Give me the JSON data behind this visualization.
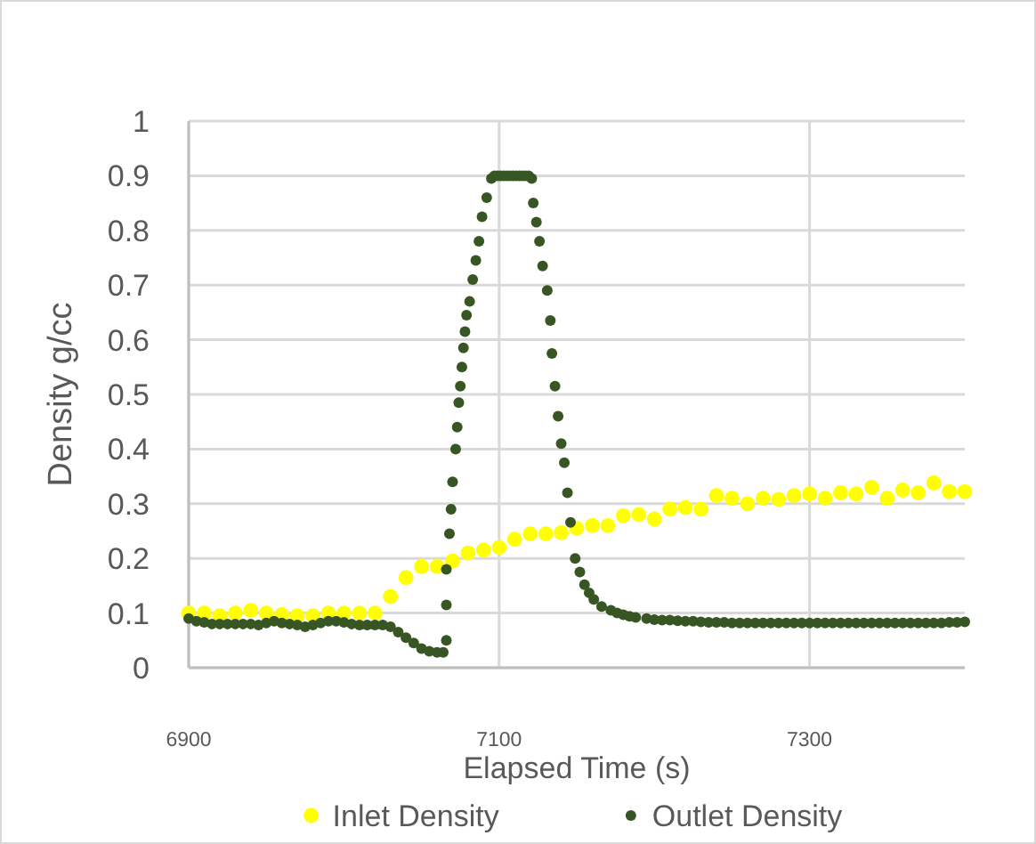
{
  "chart_data": {
    "type": "scatter",
    "xlabel": "Elapsed Time (s)",
    "ylabel": "Density g/cc",
    "xlim": [
      6900,
      7400
    ],
    "xticks": [
      6900,
      7100,
      7300
    ],
    "ylim": [
      0,
      1
    ],
    "yticks": [
      0,
      0.1,
      0.2,
      0.3,
      0.4,
      0.5,
      0.6,
      0.7,
      0.8,
      0.9,
      1
    ],
    "grid": true,
    "legend": "bottom",
    "marker": "circle",
    "series": [
      {
        "name": "Inlet Density",
        "color": "#ffff00",
        "x": [
          6900,
          6910,
          6920,
          6930,
          6940,
          6950,
          6960,
          6970,
          6980,
          6990,
          7000,
          7010,
          7020,
          7030,
          7040,
          7050,
          7060,
          7070,
          7080,
          7090,
          7100,
          7110,
          7120,
          7130,
          7140,
          7150,
          7160,
          7170,
          7180,
          7190,
          7200,
          7210,
          7220,
          7230,
          7240,
          7250,
          7260,
          7270,
          7280,
          7290,
          7300,
          7310,
          7320,
          7330,
          7340,
          7350,
          7360,
          7370,
          7380,
          7390,
          7400
        ],
        "values": [
          0.1,
          0.1,
          0.095,
          0.1,
          0.105,
          0.1,
          0.097,
          0.095,
          0.095,
          0.1,
          0.1,
          0.1,
          0.1,
          0.13,
          0.165,
          0.185,
          0.185,
          0.195,
          0.21,
          0.215,
          0.22,
          0.235,
          0.245,
          0.245,
          0.247,
          0.255,
          0.26,
          0.26,
          0.278,
          0.28,
          0.272,
          0.29,
          0.293,
          0.29,
          0.315,
          0.31,
          0.3,
          0.31,
          0.308,
          0.315,
          0.318,
          0.31,
          0.32,
          0.318,
          0.33,
          0.31,
          0.325,
          0.32,
          0.338,
          0.322,
          0.322
        ]
      },
      {
        "name": "Outlet Density",
        "color": "#375623",
        "x": [
          6900,
          6905,
          6910,
          6915,
          6920,
          6925,
          6930,
          6935,
          6940,
          6945,
          6950,
          6955,
          6960,
          6965,
          6970,
          6975,
          6980,
          6985,
          6990,
          6995,
          7000,
          7005,
          7010,
          7015,
          7020,
          7025,
          7030,
          7035,
          7040,
          7045,
          7050,
          7055,
          7060,
          7064,
          7066,
          7066,
          7066,
          7068,
          7069,
          7070,
          7072,
          7073,
          7074,
          7075,
          7076,
          7077,
          7078,
          7079,
          7081,
          7083,
          7085,
          7087,
          7089,
          7092,
          7095,
          7097,
          7099,
          7101,
          7103,
          7105,
          7107,
          7109,
          7111,
          7113,
          7115,
          7117,
          7119,
          7121,
          7122,
          7124,
          7126,
          7128,
          7131,
          7133,
          7134,
          7136,
          7138,
          7140,
          7142,
          7144,
          7146,
          7149,
          7152,
          7155,
          7158,
          7161,
          7166,
          7172,
          7176,
          7180,
          7184,
          7188,
          7195,
          7200,
          7205,
          7210,
          7215,
          7220,
          7225,
          7230,
          7235,
          7240,
          7245,
          7250,
          7255,
          7260,
          7265,
          7270,
          7275,
          7280,
          7285,
          7290,
          7295,
          7300,
          7305,
          7310,
          7315,
          7320,
          7325,
          7330,
          7335,
          7340,
          7345,
          7350,
          7355,
          7360,
          7365,
          7370,
          7375,
          7380,
          7385,
          7390,
          7395,
          7400
        ],
        "values": [
          0.09,
          0.085,
          0.083,
          0.08,
          0.08,
          0.08,
          0.08,
          0.08,
          0.08,
          0.078,
          0.082,
          0.085,
          0.082,
          0.08,
          0.078,
          0.075,
          0.078,
          0.082,
          0.085,
          0.085,
          0.083,
          0.08,
          0.078,
          0.078,
          0.078,
          0.078,
          0.075,
          0.065,
          0.055,
          0.045,
          0.035,
          0.03,
          0.028,
          0.028,
          0.05,
          0.115,
          0.18,
          0.245,
          0.29,
          0.34,
          0.4,
          0.44,
          0.485,
          0.515,
          0.55,
          0.585,
          0.615,
          0.645,
          0.67,
          0.71,
          0.745,
          0.78,
          0.825,
          0.86,
          0.895,
          0.9,
          0.9,
          0.9,
          0.9,
          0.9,
          0.9,
          0.9,
          0.9,
          0.9,
          0.9,
          0.9,
          0.9,
          0.895,
          0.85,
          0.815,
          0.78,
          0.735,
          0.69,
          0.635,
          0.575,
          0.515,
          0.46,
          0.41,
          0.375,
          0.32,
          0.266,
          0.2,
          0.175,
          0.152,
          0.137,
          0.125,
          0.112,
          0.105,
          0.1,
          0.097,
          0.094,
          0.092,
          0.09,
          0.088,
          0.087,
          0.087,
          0.086,
          0.085,
          0.085,
          0.084,
          0.083,
          0.083,
          0.083,
          0.082,
          0.082,
          0.082,
          0.082,
          0.082,
          0.082,
          0.082,
          0.082,
          0.082,
          0.082,
          0.082,
          0.082,
          0.082,
          0.082,
          0.082,
          0.082,
          0.082,
          0.082,
          0.082,
          0.082,
          0.082,
          0.082,
          0.082,
          0.082,
          0.082,
          0.082,
          0.082,
          0.082,
          0.083,
          0.083,
          0.084
        ]
      }
    ]
  }
}
